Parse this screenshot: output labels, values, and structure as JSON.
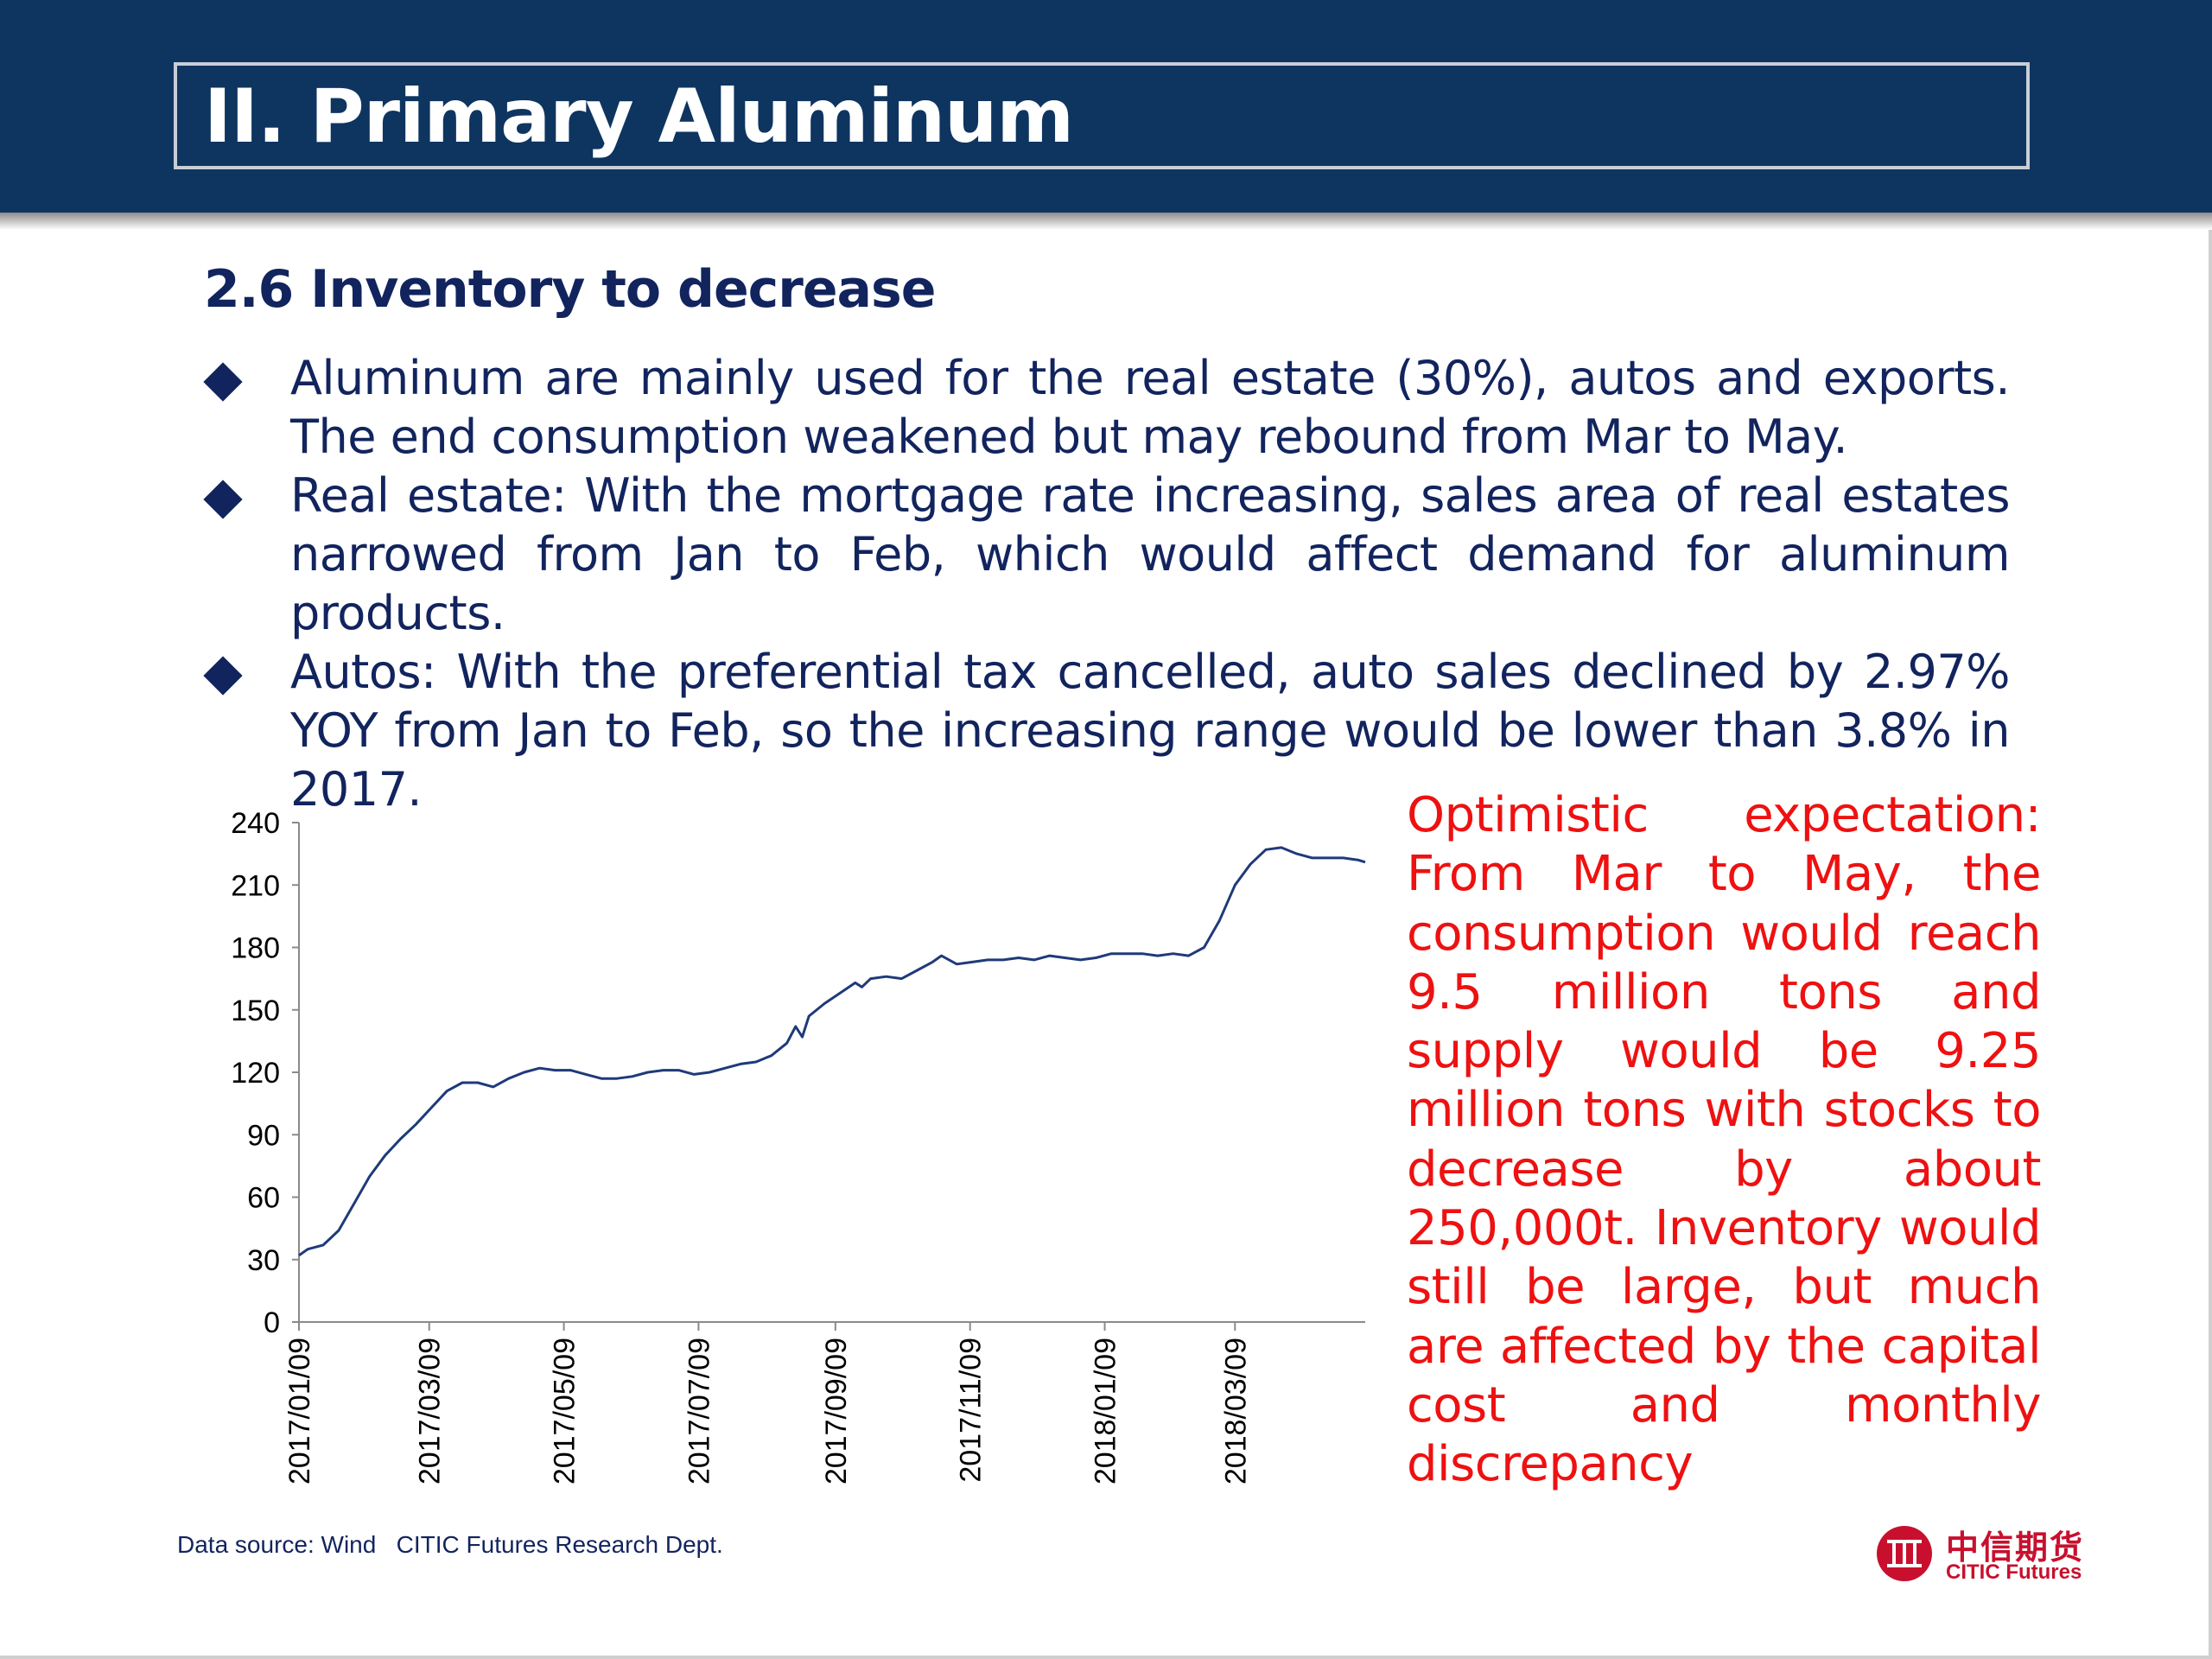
{
  "header": {
    "title": "II. Primary Aluminum"
  },
  "section": {
    "subtitle": "2.6 Inventory to decrease"
  },
  "bullets": [
    {
      "text": "Aluminum are mainly used for the real estate (30%), autos and exports. The end consumption weakened but may rebound from Mar to May."
    },
    {
      "text": "Real estate: With the mortgage rate increasing, sales area of real estates narrowed from Jan to Feb, which would affect demand for aluminum products."
    },
    {
      "text": "Autos: With the preferential tax cancelled, auto sales declined by 2.97% YOY from Jan to Feb, so the increasing range would be lower than 3.8% in 2017."
    }
  ],
  "callout": {
    "text": "Optimistic expectation: From Mar to May, the consumption would reach 9.5 million tons and supply would be 9.25 million tons with stocks to decrease by about 250,000t. Inventory would still be large, but much are affected by the capital cost and monthly discrepancy"
  },
  "footer": {
    "source": "Data source: Wind   CITIC Futures Research Dept."
  },
  "logo": {
    "cn": "中信期货",
    "en": "CITIC Futures"
  },
  "colors": {
    "header": "#0e3560",
    "text": "#12245e",
    "callout": "#ee1111",
    "line": "#1f3a7a",
    "logo": "#c8102e"
  },
  "chart_data": {
    "type": "line",
    "ylim": [
      0,
      240
    ],
    "yticks": [
      0,
      30,
      60,
      90,
      120,
      150,
      180,
      210,
      240
    ],
    "x_start": "2017/01/09",
    "x_end": "2018/05/07",
    "xtick_labels": [
      "2017/01/09",
      "2017/03/09",
      "2017/05/09",
      "2017/07/09",
      "2017/09/09",
      "2017/11/09",
      "2018/01/09",
      "2018/03/09"
    ],
    "series": [
      {
        "points": [
          [
            "2017/01/09",
            32
          ],
          [
            "2017/01/13",
            35
          ],
          [
            "2017/01/20",
            37
          ],
          [
            "2017/01/27",
            44
          ],
          [
            "2017/02/03",
            57
          ],
          [
            "2017/02/10",
            70
          ],
          [
            "2017/02/17",
            80
          ],
          [
            "2017/02/24",
            88
          ],
          [
            "2017/03/03",
            95
          ],
          [
            "2017/03/10",
            103
          ],
          [
            "2017/03/17",
            111
          ],
          [
            "2017/03/24",
            115
          ],
          [
            "2017/03/31",
            115
          ],
          [
            "2017/04/07",
            113
          ],
          [
            "2017/04/14",
            117
          ],
          [
            "2017/04/21",
            120
          ],
          [
            "2017/04/28",
            122
          ],
          [
            "2017/05/05",
            121
          ],
          [
            "2017/05/12",
            121
          ],
          [
            "2017/05/19",
            119
          ],
          [
            "2017/05/26",
            117
          ],
          [
            "2017/06/02",
            117
          ],
          [
            "2017/06/09",
            118
          ],
          [
            "2017/06/16",
            120
          ],
          [
            "2017/06/23",
            121
          ],
          [
            "2017/06/30",
            121
          ],
          [
            "2017/07/07",
            119
          ],
          [
            "2017/07/14",
            120
          ],
          [
            "2017/07/21",
            122
          ],
          [
            "2017/07/28",
            124
          ],
          [
            "2017/08/04",
            125
          ],
          [
            "2017/08/11",
            128
          ],
          [
            "2017/08/18",
            134
          ],
          [
            "2017/08/22",
            142
          ],
          [
            "2017/08/25",
            137
          ],
          [
            "2017/08/28",
            147
          ],
          [
            "2017/09/04",
            153
          ],
          [
            "2017/09/11",
            158
          ],
          [
            "2017/09/18",
            163
          ],
          [
            "2017/09/21",
            161
          ],
          [
            "2017/09/25",
            165
          ],
          [
            "2017/10/02",
            166
          ],
          [
            "2017/10/09",
            165
          ],
          [
            "2017/10/16",
            169
          ],
          [
            "2017/10/23",
            173
          ],
          [
            "2017/10/27",
            176
          ],
          [
            "2017/11/03",
            172
          ],
          [
            "2017/11/10",
            173
          ],
          [
            "2017/11/17",
            174
          ],
          [
            "2017/11/24",
            174
          ],
          [
            "2017/12/01",
            175
          ],
          [
            "2017/12/08",
            174
          ],
          [
            "2017/12/15",
            176
          ],
          [
            "2017/12/22",
            175
          ],
          [
            "2017/12/29",
            174
          ],
          [
            "2018/01/05",
            175
          ],
          [
            "2018/01/12",
            177
          ],
          [
            "2018/01/19",
            177
          ],
          [
            "2018/01/26",
            177
          ],
          [
            "2018/02/02",
            176
          ],
          [
            "2018/02/09",
            177
          ],
          [
            "2018/02/16",
            176
          ],
          [
            "2018/02/23",
            180
          ],
          [
            "2018/03/02",
            193
          ],
          [
            "2018/03/09",
            210
          ],
          [
            "2018/03/16",
            220
          ],
          [
            "2018/03/23",
            227
          ],
          [
            "2018/03/30",
            228
          ],
          [
            "2018/04/06",
            225
          ],
          [
            "2018/04/13",
            223
          ],
          [
            "2018/04/20",
            223
          ],
          [
            "2018/04/27",
            223
          ],
          [
            "2018/05/04",
            222
          ],
          [
            "2018/05/07",
            221
          ]
        ]
      }
    ]
  }
}
